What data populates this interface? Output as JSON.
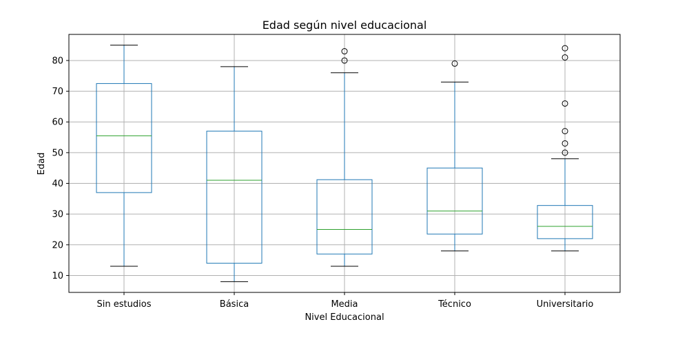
{
  "chart_data": {
    "type": "box",
    "title": "Edad según nivel educacional",
    "xlabel": "Nivel Educacional",
    "ylabel": "Edad",
    "ylim": [
      4.5,
      88.5
    ],
    "yticks": [
      10,
      20,
      30,
      40,
      50,
      60,
      70,
      80
    ],
    "grid": true,
    "colors": {
      "box": "#1f77b4",
      "median": "#2ca02c",
      "whisker_cap": "#000000",
      "flier": "#000000"
    },
    "categories": [
      "Sin estudios",
      "Básica",
      "Media",
      "Técnico",
      "Universitario"
    ],
    "boxes": [
      {
        "category": "Sin estudios",
        "whislo": 13,
        "q1": 37,
        "med": 55.5,
        "q3": 72.5,
        "whishi": 85,
        "fliers": []
      },
      {
        "category": "Básica",
        "whislo": 8,
        "q1": 14,
        "med": 41,
        "q3": 57,
        "whishi": 78,
        "fliers": []
      },
      {
        "category": "Media",
        "whislo": 13,
        "q1": 17,
        "med": 25,
        "q3": 41.2,
        "whishi": 76,
        "fliers": [
          80,
          83
        ]
      },
      {
        "category": "Técnico",
        "whislo": 18,
        "q1": 23.5,
        "med": 31,
        "q3": 45,
        "whishi": 73,
        "fliers": [
          79
        ]
      },
      {
        "category": "Universitario",
        "whislo": 18,
        "q1": 22,
        "med": 26,
        "q3": 32.8,
        "whishi": 48,
        "fliers": [
          50,
          53,
          57,
          66,
          81,
          84
        ]
      }
    ]
  }
}
